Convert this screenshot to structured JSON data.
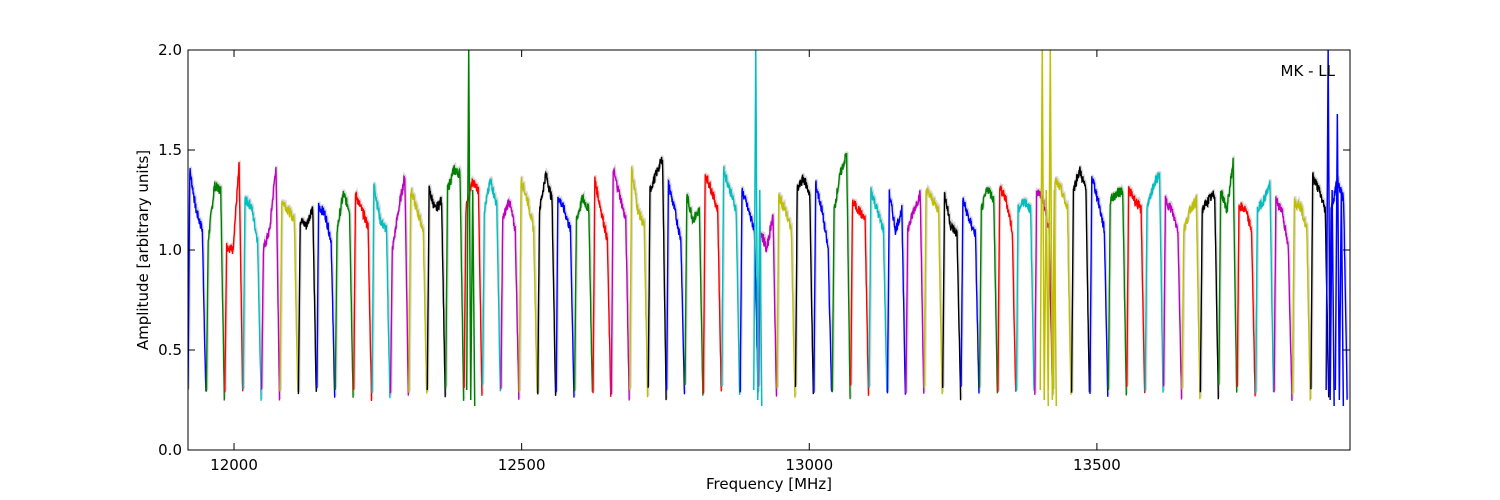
{
  "chart_data": {
    "type": "line",
    "title": "",
    "xlabel": "Frequency [MHz]",
    "ylabel": "Amplitude [arbitrary units]",
    "annotation": "MK - LL",
    "xlim": [
      11920,
      13940
    ],
    "ylim": [
      0.0,
      2.0
    ],
    "xticks": [
      12000,
      12500,
      13000,
      13500
    ],
    "yticks": [
      0.0,
      0.5,
      1.0,
      1.5,
      2.0
    ],
    "xtick_labels": [
      "12000",
      "12500",
      "13000",
      "13500"
    ],
    "ytick_labels": [
      "0.0",
      "0.5",
      "1.0",
      "1.5",
      "2.0"
    ],
    "grid": false,
    "legend": "none",
    "color_cycle": [
      "#0000ff",
      "#008000",
      "#ff0000",
      "#00bfbf",
      "#bf00bf",
      "#bfbf00",
      "#000000"
    ],
    "shadow_color": "#bfbfbf",
    "band_start": 11920,
    "band_width": 32,
    "series": [
      {
        "color": "#0000ff",
        "peaks": [
          1.4,
          1.2,
          1.1
        ]
      },
      {
        "color": "#008000",
        "peaks": [
          1.05,
          1.32,
          1.3
        ]
      },
      {
        "color": "#ff0000",
        "peaks": [
          1.02,
          1.0,
          1.42
        ]
      },
      {
        "color": "#00bfbf",
        "peaks": [
          1.25,
          1.22,
          1.05
        ]
      },
      {
        "color": "#bf00bf",
        "peaks": [
          1.0,
          1.1,
          1.42
        ]
      },
      {
        "color": "#bfbf00",
        "peaks": [
          1.25,
          1.2,
          1.15
        ]
      },
      {
        "color": "#000000",
        "peaks": [
          1.15,
          1.12,
          1.22
        ]
      },
      {
        "color": "#0000ff",
        "peaks": [
          1.22,
          1.18,
          1.05
        ]
      },
      {
        "color": "#008000",
        "peaks": [
          1.1,
          1.28,
          1.2
        ]
      },
      {
        "color": "#ff0000",
        "peaks": [
          1.28,
          1.2,
          1.12
        ]
      },
      {
        "color": "#00bfbf",
        "peaks": [
          1.33,
          1.15,
          1.1
        ]
      },
      {
        "color": "#bf00bf",
        "peaks": [
          1.0,
          1.2,
          1.37
        ]
      },
      {
        "color": "#bfbf00",
        "peaks": [
          1.3,
          1.2,
          1.1
        ]
      },
      {
        "color": "#000000",
        "peaks": [
          1.3,
          1.2,
          1.25
        ]
      },
      {
        "color": "#008000",
        "peaks": [
          1.3,
          1.4,
          1.38
        ]
      },
      {
        "color": "#ff0000",
        "peaks": [
          1.2,
          1.34,
          1.3
        ]
      },
      {
        "color": "#00bfbf",
        "peaks": [
          1.2,
          1.35,
          1.22
        ]
      },
      {
        "color": "#bf00bf",
        "peaks": [
          1.15,
          1.25,
          1.1
        ]
      },
      {
        "color": "#bfbf00",
        "peaks": [
          1.35,
          1.25,
          1.1
        ]
      },
      {
        "color": "#000000",
        "peaks": [
          1.2,
          1.38,
          1.25
        ]
      },
      {
        "color": "#0000ff",
        "peaks": [
          1.27,
          1.2,
          1.1
        ]
      },
      {
        "color": "#008000",
        "peaks": [
          1.15,
          1.26,
          1.2
        ]
      },
      {
        "color": "#ff0000",
        "peaks": [
          1.35,
          1.2,
          1.05
        ]
      },
      {
        "color": "#bf00bf",
        "peaks": [
          1.4,
          1.28,
          1.15
        ]
      },
      {
        "color": "#bfbf00",
        "peaks": [
          1.4,
          1.2,
          1.12
        ]
      },
      {
        "color": "#000000",
        "peaks": [
          1.3,
          1.38,
          1.46
        ]
      },
      {
        "color": "#0000ff",
        "peaks": [
          1.33,
          1.2,
          1.05
        ]
      },
      {
        "color": "#008000",
        "peaks": [
          1.27,
          1.15,
          1.2
        ]
      },
      {
        "color": "#ff0000",
        "peaks": [
          1.38,
          1.3,
          1.2
        ]
      },
      {
        "color": "#00bfbf",
        "peaks": [
          1.4,
          1.3,
          1.2
        ]
      },
      {
        "color": "#0000ff",
        "peaks": [
          1.3,
          1.2,
          1.1
        ]
      },
      {
        "color": "#bf00bf",
        "peaks": [
          1.1,
          1.0,
          1.18
        ]
      },
      {
        "color": "#bfbf00",
        "peaks": [
          1.27,
          1.2,
          1.1
        ]
      },
      {
        "color": "#000000",
        "peaks": [
          1.3,
          1.36,
          1.28
        ]
      },
      {
        "color": "#0000ff",
        "peaks": [
          1.33,
          1.2,
          1.0
        ]
      },
      {
        "color": "#008000",
        "peaks": [
          1.2,
          1.38,
          1.48
        ]
      },
      {
        "color": "#ff0000",
        "peaks": [
          1.24,
          1.2,
          1.15
        ]
      },
      {
        "color": "#00bfbf",
        "peaks": [
          1.3,
          1.2,
          1.1
        ]
      },
      {
        "color": "#0000ff",
        "peaks": [
          1.28,
          1.1,
          1.2
        ]
      },
      {
        "color": "#bf00bf",
        "peaks": [
          1.1,
          1.2,
          1.28
        ]
      },
      {
        "color": "#bfbf00",
        "peaks": [
          1.3,
          1.25,
          1.2
        ]
      },
      {
        "color": "#000000",
        "peaks": [
          1.28,
          1.12,
          1.08
        ]
      },
      {
        "color": "#0000ff",
        "peaks": [
          1.25,
          1.15,
          1.08
        ]
      },
      {
        "color": "#008000",
        "peaks": [
          1.2,
          1.31,
          1.25
        ]
      },
      {
        "color": "#ff0000",
        "peaks": [
          1.31,
          1.25,
          1.1
        ]
      },
      {
        "color": "#00bfbf",
        "peaks": [
          1.2,
          1.25,
          1.2
        ]
      },
      {
        "color": "#bf00bf",
        "peaks": [
          1.3,
          1.25,
          1.1
        ]
      },
      {
        "color": "#bfbf00",
        "peaks": [
          1.35,
          1.3,
          1.2
        ]
      },
      {
        "color": "#000000",
        "peaks": [
          1.3,
          1.4,
          1.3
        ]
      },
      {
        "color": "#0000ff",
        "peaks": [
          1.37,
          1.25,
          1.1
        ]
      },
      {
        "color": "#008000",
        "peaks": [
          1.25,
          1.28,
          1.3
        ]
      },
      {
        "color": "#ff0000",
        "peaks": [
          1.3,
          1.25,
          1.2
        ]
      },
      {
        "color": "#00bfbf",
        "peaks": [
          1.2,
          1.32,
          1.38
        ]
      },
      {
        "color": "#bf00bf",
        "peaks": [
          1.25,
          1.2,
          1.1
        ]
      },
      {
        "color": "#bfbf00",
        "peaks": [
          1.1,
          1.2,
          1.25
        ]
      },
      {
        "color": "#000000",
        "peaks": [
          1.2,
          1.25,
          1.28
        ]
      },
      {
        "color": "#008000",
        "peaks": [
          1.3,
          1.2,
          1.44
        ]
      },
      {
        "color": "#ff0000",
        "peaks": [
          1.22,
          1.2,
          1.1
        ]
      },
      {
        "color": "#00bfbf",
        "peaks": [
          1.2,
          1.25,
          1.33
        ]
      },
      {
        "color": "#bf00bf",
        "peaks": [
          1.25,
          1.2,
          1.0
        ]
      },
      {
        "color": "#bfbf00",
        "peaks": [
          1.24,
          1.22,
          1.1
        ]
      },
      {
        "color": "#000000",
        "peaks": [
          1.37,
          1.3,
          1.2
        ]
      },
      {
        "color": "#0000ff",
        "peaks": [
          1.2,
          1.35,
          1.25
        ]
      }
    ],
    "spikes": [
      {
        "color": "#008000",
        "x": 12408,
        "peak": 2.0
      },
      {
        "color": "#00bfbf",
        "x": 12907,
        "peak": 2.0
      },
      {
        "color": "#bfbf00",
        "x": 13405,
        "peak": 2.0
      },
      {
        "color": "#bfbf00",
        "x": 13419,
        "peak": 2.0
      },
      {
        "color": "#0000ff",
        "x": 13902,
        "peak": 2.0
      },
      {
        "color": "#0000ff",
        "x": 13918,
        "peak": 1.68
      }
    ]
  }
}
